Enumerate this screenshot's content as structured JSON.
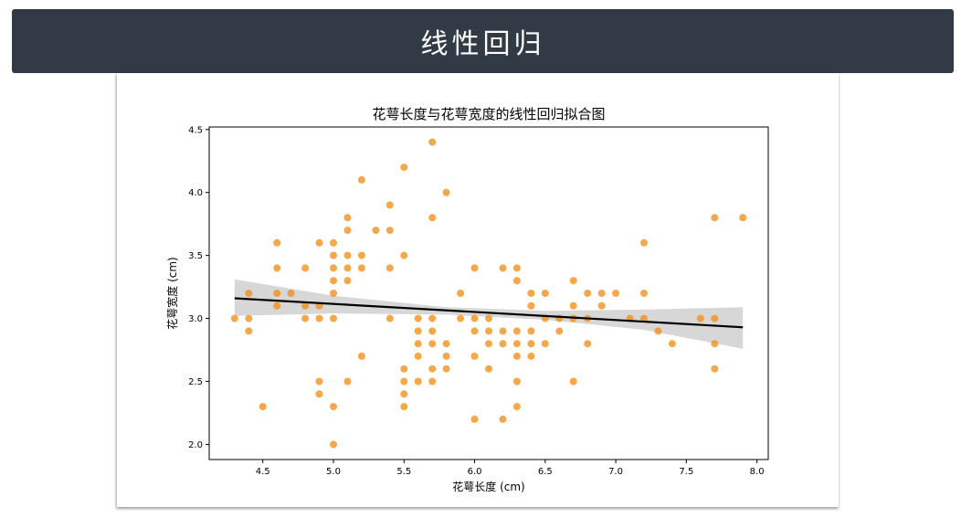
{
  "header": {
    "title": "线性回归"
  },
  "chart_data": {
    "type": "scatter",
    "title": "花萼长度与花萼宽度的线性回归拟合图",
    "xlabel": "花萼长度 (cm)",
    "ylabel": "花萼宽度 (cm)",
    "xlim": [
      4.12,
      8.08
    ],
    "ylim": [
      1.88,
      4.52
    ],
    "xticks": [
      "4.5",
      "5.0",
      "5.5",
      "6.0",
      "6.5",
      "7.0",
      "7.5",
      "8.0"
    ],
    "yticks": [
      "2.0",
      "2.5",
      "3.0",
      "3.5",
      "4.0",
      "4.5"
    ],
    "point_color": "#f28e16",
    "line_color": "#000000",
    "band_color": "#d3d3d3",
    "regression": {
      "x": [
        4.3,
        7.9
      ],
      "y": [
        3.16,
        2.93
      ]
    },
    "confidence_band": {
      "x": [
        4.3,
        5.0,
        5.8,
        6.5,
        7.2,
        7.9
      ],
      "upper": [
        3.31,
        3.18,
        3.09,
        3.06,
        3.07,
        3.09
      ],
      "lower": [
        3.02,
        3.04,
        3.03,
        2.99,
        2.91,
        2.76
      ]
    },
    "points": [
      [
        4.3,
        3.0
      ],
      [
        4.4,
        3.2
      ],
      [
        4.4,
        3.0
      ],
      [
        4.4,
        2.9
      ],
      [
        4.5,
        2.3
      ],
      [
        4.6,
        3.6
      ],
      [
        4.6,
        3.4
      ],
      [
        4.6,
        3.2
      ],
      [
        4.6,
        3.1
      ],
      [
        4.7,
        3.2
      ],
      [
        4.8,
        3.4
      ],
      [
        4.8,
        3.1
      ],
      [
        4.8,
        3.0
      ],
      [
        4.9,
        3.6
      ],
      [
        4.9,
        3.1
      ],
      [
        4.9,
        3.0
      ],
      [
        4.9,
        2.5
      ],
      [
        4.9,
        2.4
      ],
      [
        5.0,
        3.6
      ],
      [
        5.0,
        3.5
      ],
      [
        5.0,
        3.4
      ],
      [
        5.0,
        3.3
      ],
      [
        5.0,
        3.2
      ],
      [
        5.0,
        3.0
      ],
      [
        5.0,
        2.3
      ],
      [
        5.0,
        2.0
      ],
      [
        5.1,
        3.8
      ],
      [
        5.1,
        3.7
      ],
      [
        5.1,
        3.5
      ],
      [
        5.1,
        3.4
      ],
      [
        5.1,
        3.3
      ],
      [
        5.1,
        2.5
      ],
      [
        5.2,
        4.1
      ],
      [
        5.2,
        3.5
      ],
      [
        5.2,
        3.4
      ],
      [
        5.2,
        2.7
      ],
      [
        5.3,
        3.7
      ],
      [
        5.4,
        3.9
      ],
      [
        5.4,
        3.7
      ],
      [
        5.4,
        3.4
      ],
      [
        5.4,
        3.0
      ],
      [
        5.5,
        4.2
      ],
      [
        5.5,
        3.5
      ],
      [
        5.5,
        2.6
      ],
      [
        5.5,
        2.5
      ],
      [
        5.5,
        2.4
      ],
      [
        5.5,
        2.3
      ],
      [
        5.6,
        3.0
      ],
      [
        5.6,
        2.9
      ],
      [
        5.6,
        2.8
      ],
      [
        5.6,
        2.7
      ],
      [
        5.6,
        2.5
      ],
      [
        5.7,
        4.4
      ],
      [
        5.7,
        3.8
      ],
      [
        5.7,
        3.0
      ],
      [
        5.7,
        2.9
      ],
      [
        5.7,
        2.8
      ],
      [
        5.7,
        2.6
      ],
      [
        5.7,
        2.5
      ],
      [
        5.8,
        4.0
      ],
      [
        5.8,
        2.8
      ],
      [
        5.8,
        2.7
      ],
      [
        5.8,
        2.6
      ],
      [
        5.9,
        3.2
      ],
      [
        5.9,
        3.0
      ],
      [
        6.0,
        3.4
      ],
      [
        6.0,
        3.0
      ],
      [
        6.0,
        2.9
      ],
      [
        6.0,
        2.7
      ],
      [
        6.0,
        2.2
      ],
      [
        6.1,
        3.0
      ],
      [
        6.1,
        2.9
      ],
      [
        6.1,
        2.8
      ],
      [
        6.1,
        2.6
      ],
      [
        6.2,
        3.4
      ],
      [
        6.2,
        2.9
      ],
      [
        6.2,
        2.8
      ],
      [
        6.2,
        2.2
      ],
      [
        6.3,
        3.4
      ],
      [
        6.3,
        3.3
      ],
      [
        6.3,
        2.9
      ],
      [
        6.3,
        2.8
      ],
      [
        6.3,
        2.7
      ],
      [
        6.3,
        2.5
      ],
      [
        6.3,
        2.3
      ],
      [
        6.4,
        3.2
      ],
      [
        6.4,
        3.1
      ],
      [
        6.4,
        2.9
      ],
      [
        6.4,
        2.8
      ],
      [
        6.4,
        2.7
      ],
      [
        6.5,
        3.2
      ],
      [
        6.5,
        3.0
      ],
      [
        6.5,
        2.8
      ],
      [
        6.6,
        3.0
      ],
      [
        6.6,
        2.9
      ],
      [
        6.7,
        3.3
      ],
      [
        6.7,
        3.1
      ],
      [
        6.7,
        3.0
      ],
      [
        6.7,
        2.5
      ],
      [
        6.8,
        3.2
      ],
      [
        6.8,
        3.0
      ],
      [
        6.8,
        2.8
      ],
      [
        6.9,
        3.2
      ],
      [
        6.9,
        3.1
      ],
      [
        7.0,
        3.2
      ],
      [
        7.1,
        3.0
      ],
      [
        7.2,
        3.6
      ],
      [
        7.2,
        3.2
      ],
      [
        7.2,
        3.0
      ],
      [
        7.3,
        2.9
      ],
      [
        7.4,
        2.8
      ],
      [
        7.6,
        3.0
      ],
      [
        7.7,
        3.8
      ],
      [
        7.7,
        3.0
      ],
      [
        7.7,
        2.8
      ],
      [
        7.7,
        2.6
      ],
      [
        7.9,
        3.8
      ]
    ]
  }
}
